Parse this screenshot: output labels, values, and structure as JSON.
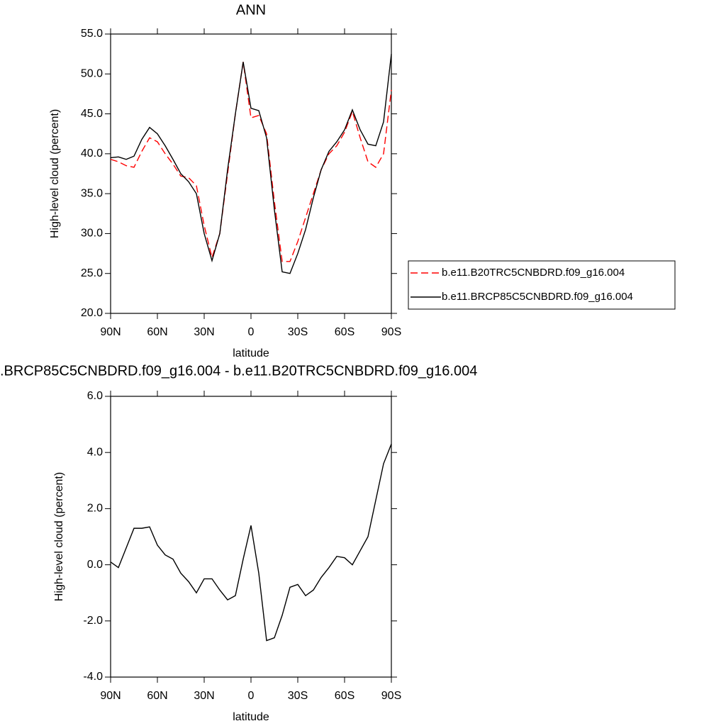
{
  "chart_data": [
    {
      "type": "line",
      "title": "ANN",
      "x_label": "latitude",
      "y_label": "High-level cloud (percent)",
      "x": [
        90,
        85,
        80,
        75,
        70,
        65,
        60,
        55,
        50,
        45,
        40,
        35,
        30,
        25,
        20,
        15,
        10,
        5,
        0,
        -5,
        -10,
        -15,
        -20,
        -25,
        -30,
        -35,
        -40,
        -45,
        -50,
        -55,
        -60,
        -65,
        -70,
        -75,
        -80,
        -85,
        -90
      ],
      "series": [
        {
          "name": "b.e11.B20TRC5CNBDRD.f09_g16.004",
          "color": "#ff0000",
          "dash": "dashed",
          "values": [
            39.3,
            39.0,
            38.5,
            38.3,
            40.3,
            42.0,
            41.5,
            40.0,
            38.7,
            37.2,
            37.0,
            36.0,
            31.0,
            27.0,
            30.0,
            37.5,
            45.0,
            51.5,
            44.5,
            44.8,
            42.5,
            34.0,
            26.5,
            26.5,
            29.0,
            32.0,
            35.0,
            38.0,
            40.0,
            41.0,
            42.7,
            45.3,
            42.0,
            39.0,
            38.3,
            40.0,
            48.0
          ]
        },
        {
          "name": "b.e11.BRCP85C5CNBDRD.f09_g16.004",
          "color": "#000000",
          "dash": "solid",
          "values": [
            39.5,
            39.6,
            39.3,
            39.7,
            41.8,
            43.3,
            42.5,
            41.0,
            39.3,
            37.5,
            36.5,
            35.0,
            30.0,
            26.6,
            30.0,
            38.0,
            45.0,
            51.5,
            45.7,
            45.4,
            42.0,
            33.0,
            25.2,
            25.0,
            27.5,
            30.5,
            34.5,
            38.0,
            40.3,
            41.5,
            43.0,
            45.5,
            43.0,
            41.2,
            41.0,
            44.0,
            52.5
          ]
        }
      ],
      "xlim": [
        90,
        -90
      ],
      "xticks": [
        {
          "value": 90,
          "label": "90N"
        },
        {
          "value": 60,
          "label": "60N"
        },
        {
          "value": 30,
          "label": "30N"
        },
        0,
        {
          "value": -30,
          "label": "30S"
        },
        {
          "value": -60,
          "label": "60S"
        },
        {
          "value": -90,
          "label": "90S"
        }
      ],
      "ylim": [
        20,
        55
      ],
      "yticks": [
        {
          "value": 20,
          "label": "20.0"
        },
        {
          "value": 25,
          "label": "25.0"
        },
        {
          "value": 30,
          "label": "30.0"
        },
        {
          "value": 35,
          "label": "35.0"
        },
        {
          "value": 40,
          "label": "40.0"
        },
        {
          "value": 45,
          "label": "45.0"
        },
        {
          "value": 50,
          "label": "50.0"
        },
        {
          "value": 55,
          "label": "55.0"
        }
      ],
      "legend": "right"
    },
    {
      "type": "line",
      "title": ".BRCP85C5CNBDRD.f09_g16.004 - b.e11.B20TRC5CNBDRD.f09_g16.004",
      "x_label": "latitude",
      "y_label": "High-level cloud (percent)",
      "x": [
        90,
        85,
        80,
        75,
        70,
        65,
        60,
        55,
        50,
        45,
        40,
        35,
        30,
        25,
        20,
        15,
        10,
        5,
        0,
        -5,
        -10,
        -15,
        -20,
        -25,
        -30,
        -35,
        -40,
        -45,
        -50,
        -55,
        -60,
        -65,
        -70,
        -75,
        -80,
        -85,
        -90
      ],
      "series": [
        {
          "color": "#000000",
          "dash": "solid",
          "values": [
            0.1,
            -0.1,
            0.6,
            1.3,
            1.3,
            1.35,
            0.7,
            0.35,
            0.2,
            -0.3,
            -0.6,
            -1.0,
            -0.5,
            -0.5,
            -0.9,
            -1.25,
            -1.1,
            0.2,
            1.4,
            -0.3,
            -2.7,
            -2.6,
            -1.8,
            -0.8,
            -0.7,
            -1.1,
            -0.9,
            -0.45,
            -0.1,
            0.3,
            0.25,
            0.0,
            0.5,
            1.0,
            2.3,
            3.6,
            4.3
          ]
        }
      ],
      "xlim": [
        90,
        -90
      ],
      "xticks": [
        {
          "value": 90,
          "label": "90N"
        },
        {
          "value": 60,
          "label": "60N"
        },
        {
          "value": 30,
          "label": "30N"
        },
        0,
        {
          "value": -30,
          "label": "30S"
        },
        {
          "value": -60,
          "label": "60S"
        },
        {
          "value": -90,
          "label": "90S"
        }
      ],
      "ylim": [
        -4,
        6
      ],
      "yticks": [
        {
          "value": -4,
          "label": "-4.0"
        },
        {
          "value": -2,
          "label": "-2.0"
        },
        {
          "value": 0,
          "label": "0.0"
        },
        {
          "value": 2,
          "label": "2.0"
        },
        {
          "value": 4,
          "label": "4.0"
        },
        {
          "value": 6,
          "label": "6.0"
        }
      ]
    }
  ]
}
